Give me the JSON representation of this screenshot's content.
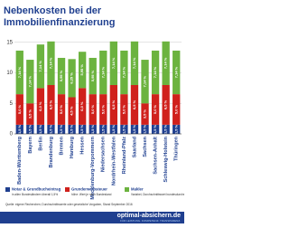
{
  "chart_data": {
    "type": "stacked-bar",
    "title": "Nebenkosten bei der Immobilienfinanzierung",
    "categories": [
      "Baden-Württemberg",
      "Bayern",
      "Berlin",
      "Brandenburg",
      "Bremen",
      "Hamburg",
      "Hessen",
      "Mecklenburg-Vorpommern",
      "Niedersachsen",
      "Nordrhein-Westfalen",
      "Rheinland-Pfalz",
      "Saarland",
      "Sachsen",
      "Sachsen-Anhalt",
      "Schleswig-Holstein",
      "Thüringen"
    ],
    "series": [
      {
        "name": "Notar & Grundbucheintrag",
        "note": "in allen Bundesländern überall 1,5%",
        "color": "#1f3f8f",
        "values": [
          1.5,
          1.5,
          1.5,
          1.5,
          1.5,
          1.5,
          1.5,
          1.5,
          1.5,
          1.5,
          1.5,
          1.5,
          1.5,
          1.5,
          1.5,
          1.5
        ],
        "value_labels": [
          "1,5 %",
          "1,5 %",
          "1,5 %",
          "1,5 %",
          "1,5 %",
          "1,5 %",
          "1,5 %",
          "1,5 %",
          "1,5 %",
          "1,5 %",
          "1,5 %",
          "1,5 %",
          "1,5 %",
          "1,5 %",
          "1,5 %",
          "1,5 %"
        ]
      },
      {
        "name": "Grunderwerbsteuer",
        "note": "höhe: Wert je nach Bundesland",
        "color": "#d0211c",
        "values": [
          5,
          3.5,
          6,
          6.5,
          5,
          4.5,
          6,
          5,
          5,
          6.5,
          5,
          6.5,
          3.5,
          5,
          6.5,
          5
        ],
        "value_labels": [
          "5,0 %",
          "3,5 %",
          "6,0 %",
          "6,5 %",
          "5,0 %",
          "4,5 %",
          "6,0 %",
          "5,0 %",
          "5,0 %",
          "6,5 %",
          "5,0 %",
          "6,5 %",
          "3,5 %",
          "5,0 %",
          "6,5 %",
          "5,0 %"
        ]
      },
      {
        "name": "Makler",
        "note": "Variabel, Durchschnittswert bundesdurchschnittlich",
        "color": "#6cb33f",
        "values": [
          7.14,
          7.14,
          7.14,
          7.14,
          5.95,
          6.25,
          5.95,
          5.95,
          7.14,
          7.14,
          7.14,
          7.14,
          7.14,
          7.14,
          7.14,
          7.14
        ],
        "value_labels": [
          "7,14 %",
          "7,14 %",
          "7,14 %",
          "7,14 %",
          "5,95 %",
          "6,25 %",
          "5,95 %",
          "5,95 %",
          "7,14 %",
          "7,14 %",
          "7,14 %",
          "7,14 %",
          "7,14 %",
          "7,14 %",
          "7,14 %",
          "7,14 %"
        ]
      }
    ],
    "ylim": [
      0,
      16
    ],
    "yticks": [
      0,
      5,
      10,
      15
    ],
    "grid": true,
    "source": "Quelle: eigene Recherchen; Durchschnittswerte oder gesetzliche Vorgaben, Stand September 2016",
    "brand": "optimal-absichern.de",
    "tagline": "FÜR LEISTUNG. KOMPETENZ. TRANSPARENZ."
  }
}
